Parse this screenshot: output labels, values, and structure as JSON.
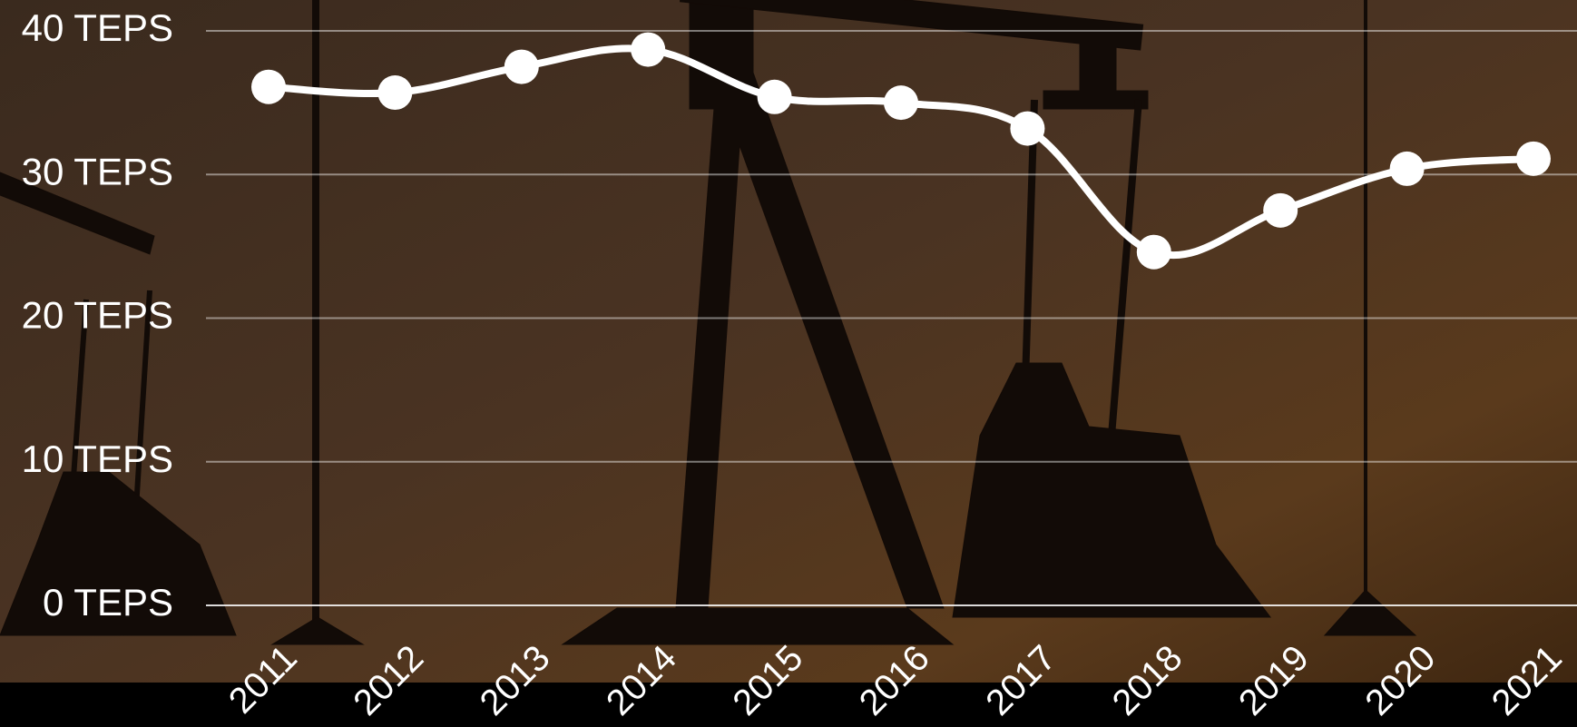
{
  "chart_data": {
    "type": "line",
    "categories": [
      "2011",
      "2012",
      "2013",
      "2014",
      "2015",
      "2016",
      "2017",
      "2018",
      "2019",
      "2020",
      "2021"
    ],
    "values": [
      36.1,
      35.7,
      37.5,
      38.7,
      35.4,
      35.0,
      33.2,
      24.6,
      27.5,
      30.4,
      31.1
    ],
    "color": "#ffffff",
    "ylim": [
      0,
      40
    ],
    "yticks": [
      {
        "value": 0,
        "label": "0 TEPS"
      },
      {
        "value": 10,
        "label": "10 TEPS"
      },
      {
        "value": 20,
        "label": "20 TEPS"
      },
      {
        "value": 30,
        "label": "30 TEPS"
      },
      {
        "value": 40,
        "label": "40 TEPS"
      }
    ],
    "grid": true
  }
}
